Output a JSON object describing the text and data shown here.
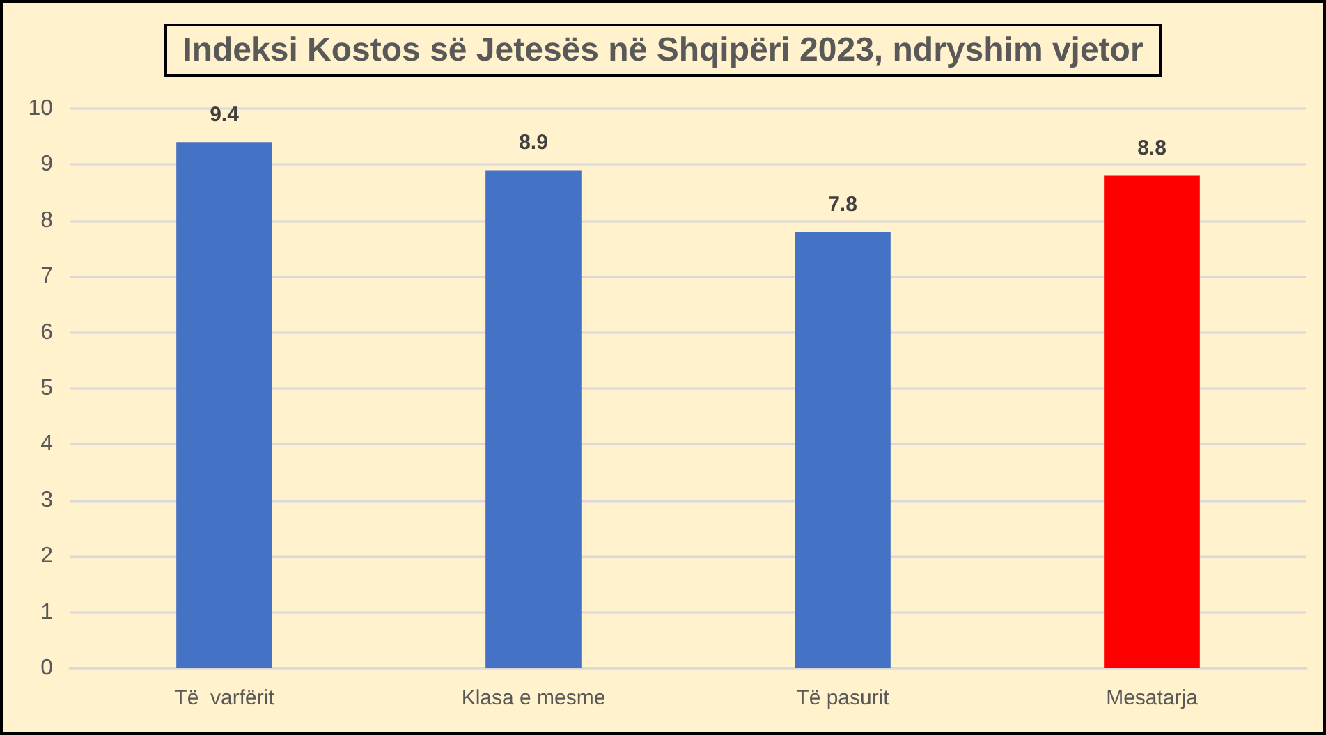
{
  "chart_data": {
    "type": "bar",
    "title": "Indeksi Kostos së Jetesës në Shqipëri 2023, ndryshim vjetor",
    "categories": [
      "Të  varfërit",
      "Klasa e mesme",
      "Të pasurit",
      "Mesatarja"
    ],
    "values": [
      9.4,
      8.9,
      7.8,
      8.8
    ],
    "colors": [
      "#4472c4",
      "#4472c4",
      "#4472c4",
      "#ff0000"
    ],
    "ylim": [
      0,
      10
    ],
    "yticks": [
      0,
      1,
      2,
      3,
      4,
      5,
      6,
      7,
      8,
      9,
      10
    ],
    "grid": "y",
    "data_labels": true
  }
}
